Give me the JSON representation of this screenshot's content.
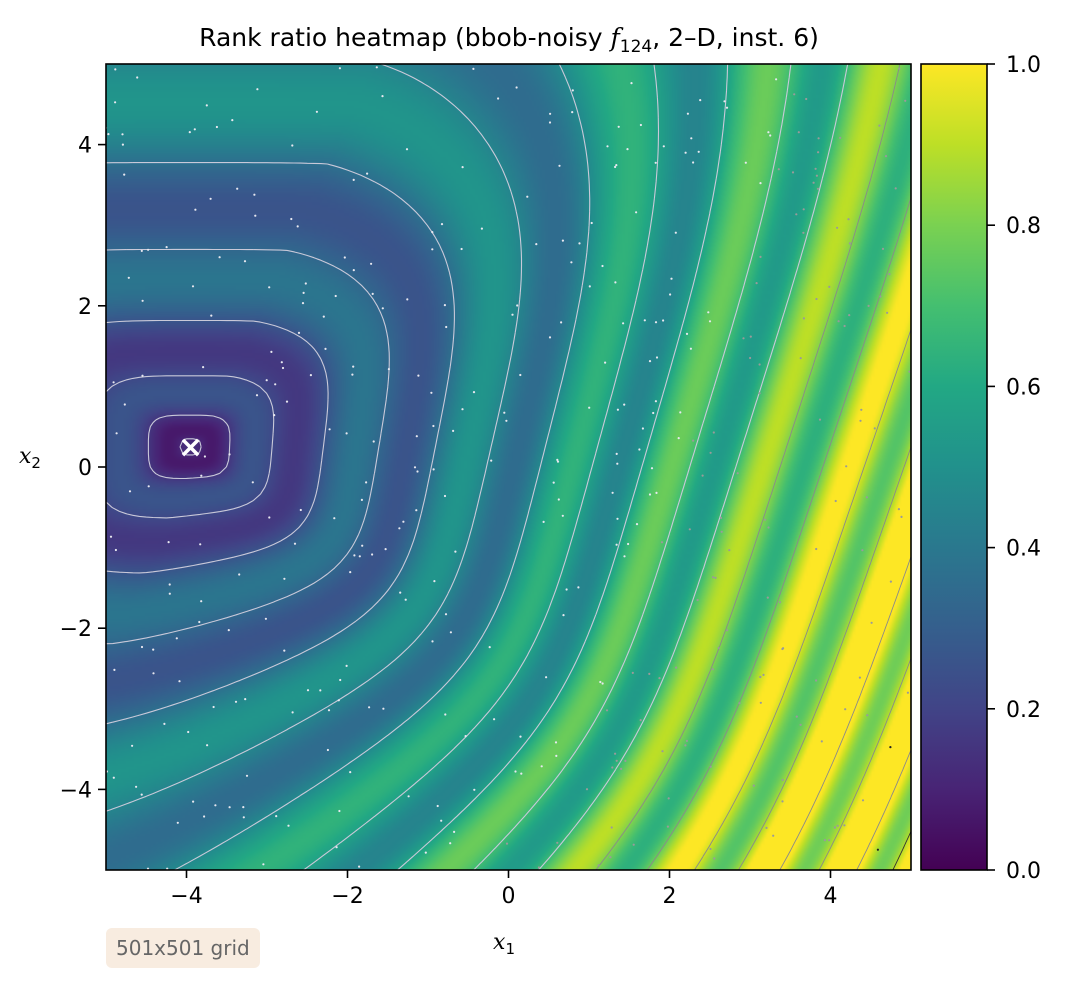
{
  "chart_data": {
    "type": "heatmap",
    "title": "Rank ratio heatmap (bbob-noisy f_124, 2–D, inst. 6)",
    "title_parts": {
      "prefix": "Rank ratio heatmap (bbob-noisy ",
      "f": "f",
      "sub": "124",
      "suffix": ", 2–D, inst. 6)"
    },
    "xlabel": {
      "var": "x",
      "sub": "1"
    },
    "ylabel": {
      "var": "x",
      "sub": "2"
    },
    "xlim": [
      -5,
      5
    ],
    "ylim": [
      -5,
      5
    ],
    "x_ticks": [
      -4,
      -2,
      0,
      2,
      4
    ],
    "y_ticks": [
      -4,
      -2,
      0,
      2,
      4
    ],
    "x_tick_labels": [
      "−4",
      "−2",
      "0",
      "2",
      "4"
    ],
    "y_tick_labels": [
      "−4",
      "−2",
      "0",
      "2",
      "4"
    ],
    "colorbar": {
      "cmap": "viridis",
      "range": [
        0,
        1
      ],
      "ticks": [
        0.0,
        0.2,
        0.4,
        0.6,
        0.8,
        1.0
      ],
      "tick_labels": [
        "0.0",
        "0.2",
        "0.4",
        "0.6",
        "0.8",
        "1.0"
      ]
    },
    "optimum": {
      "x": -3.95,
      "y": 0.25,
      "marker": "×",
      "color": "#ffffff"
    },
    "grid": false,
    "annotation": "501x501 grid"
  }
}
